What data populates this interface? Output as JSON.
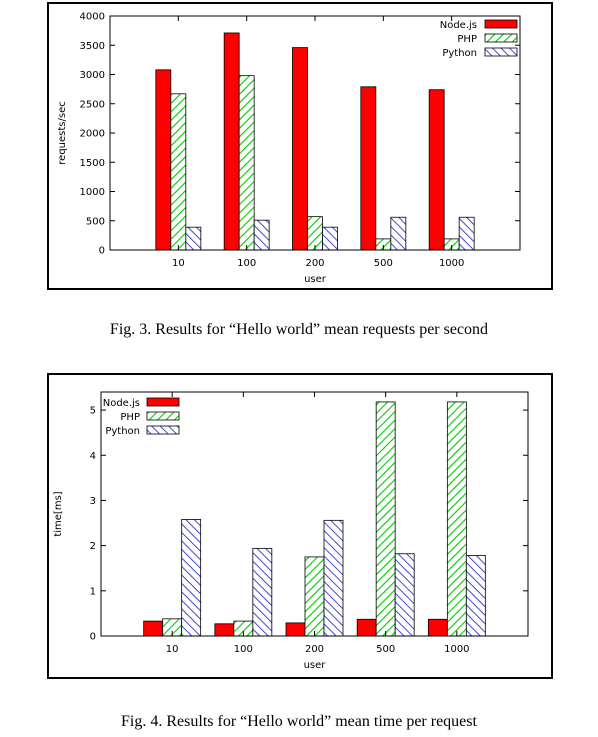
{
  "chart_data": [
    {
      "type": "bar",
      "categories": [
        "10",
        "100",
        "200",
        "500",
        "1000"
      ],
      "series": [
        {
          "name": "Node.js",
          "values": [
            3080,
            3710,
            3460,
            2790,
            2740
          ]
        },
        {
          "name": "PHP",
          "values": [
            2670,
            2980,
            570,
            190,
            190
          ]
        },
        {
          "name": "Python",
          "values": [
            390,
            510,
            390,
            560,
            560
          ]
        }
      ],
      "xlabel": "user",
      "ylabel": "requests/sec",
      "ylim": [
        0,
        4000
      ],
      "yticks": [
        0,
        500,
        1000,
        1500,
        2000,
        2500,
        3000,
        3500,
        4000
      ],
      "legend": "top-right",
      "caption": "Fig. 3.   Results for “Hello world” mean requests per second"
    },
    {
      "type": "bar",
      "categories": [
        "10",
        "100",
        "200",
        "500",
        "1000"
      ],
      "series": [
        {
          "name": "Node.js",
          "values": [
            0.33,
            0.27,
            0.29,
            0.37,
            0.37
          ]
        },
        {
          "name": "PHP",
          "values": [
            0.38,
            0.33,
            1.75,
            5.18,
            5.18
          ]
        },
        {
          "name": "Python",
          "values": [
            2.58,
            1.94,
            2.56,
            1.82,
            1.78
          ]
        }
      ],
      "xlabel": "user",
      "ylabel": "time[ms]",
      "ylim": [
        0,
        5.4
      ],
      "yticks": [
        0,
        1,
        2,
        3,
        4,
        5
      ],
      "legend": "top-left",
      "caption": "Fig. 4.   Results for “Hello world” mean time per request"
    }
  ],
  "colors": {
    "nodejs": "#ff0000",
    "php": "#00cc00",
    "python": "#3333cc"
  }
}
